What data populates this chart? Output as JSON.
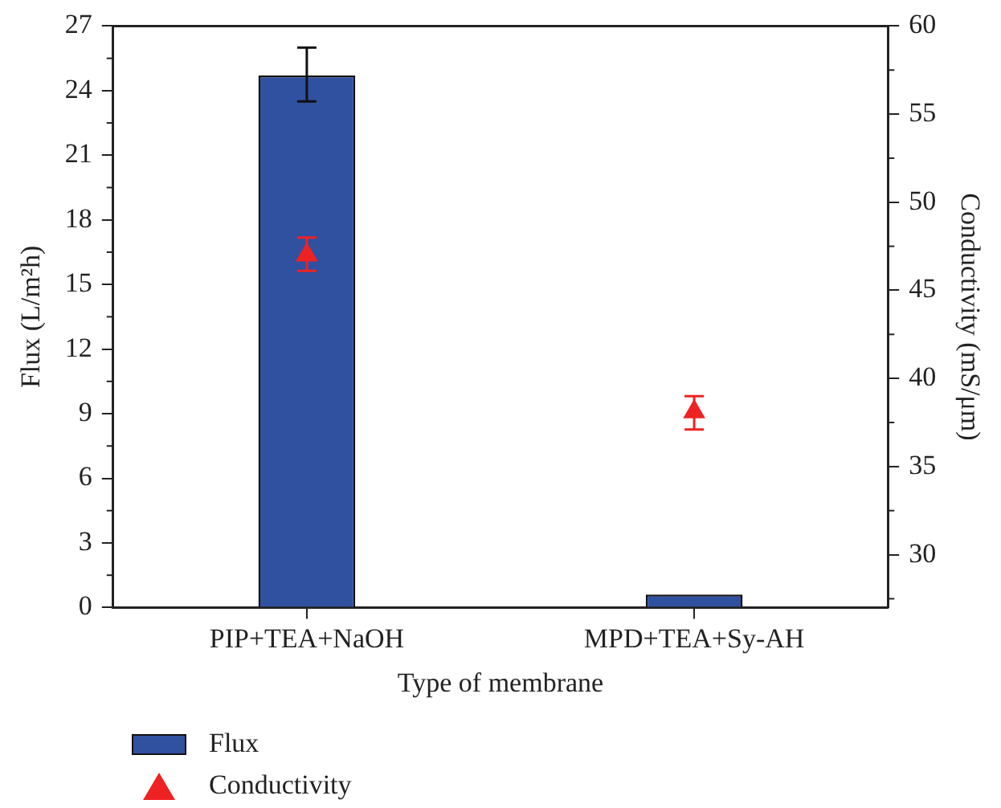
{
  "chart_data": {
    "type": "bar",
    "xlabel": "Type of membrane",
    "ylabel": "Flux (L/m²h)",
    "y2label": "Conductivity (mS/μm)",
    "categories": [
      "PIP+TEA+NaOH",
      "MPD+TEA+Sy-AH"
    ],
    "series": [
      {
        "name": "Flux",
        "color": "#3050a0",
        "values": [
          24.7,
          0.6
        ],
        "errors": [
          [
            23.5,
            26.0
          ],
          null
        ]
      },
      {
        "name": "Conductivity",
        "type": "scatter",
        "axis": "y2",
        "color": "#ee2222",
        "marker": "triangle",
        "values": [
          47.0,
          38.1
        ],
        "errors": [
          [
            46.1,
            48.0
          ],
          [
            37.1,
            39.0
          ]
        ]
      }
    ],
    "ylim": [
      0,
      27
    ],
    "yticks": [
      0,
      3,
      6,
      9,
      12,
      15,
      18,
      21,
      24,
      27
    ],
    "y2lim": [
      27,
      60
    ],
    "y2ticks": [
      30,
      35,
      40,
      45,
      50,
      55,
      60
    ],
    "grid": false,
    "legend": "bottom left"
  }
}
